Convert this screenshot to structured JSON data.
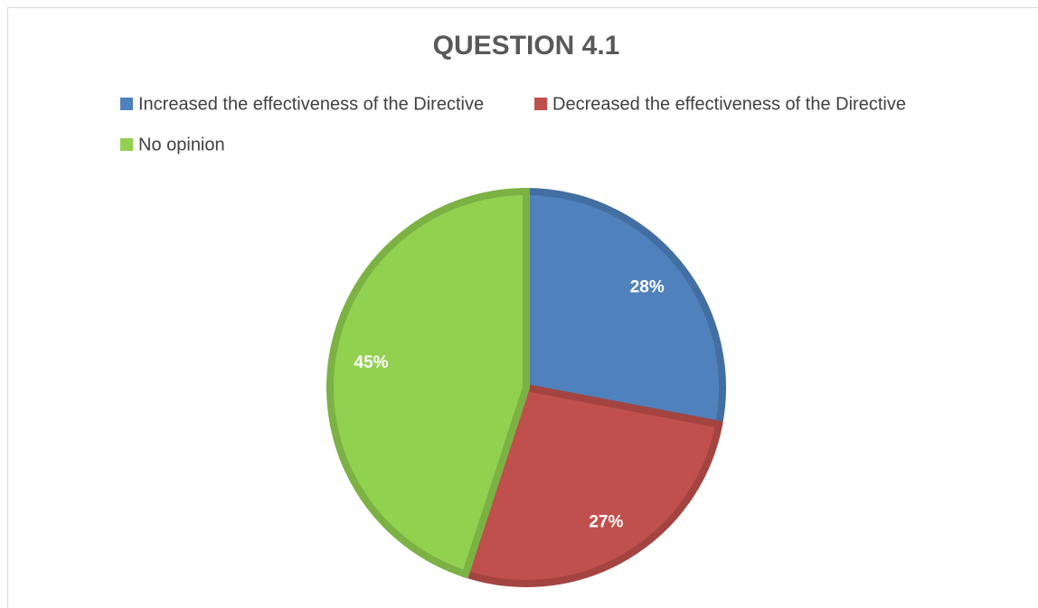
{
  "chart_data": {
    "type": "pie",
    "title": "QUESTION 4.1",
    "categories": [
      "Increased the effectiveness of the Directive",
      "Decreased the effectiveness of the Directive",
      "No opinion"
    ],
    "values": [
      28,
      27,
      45
    ],
    "value_labels": [
      "28%",
      "27%",
      "45%"
    ],
    "colors": [
      "#4f81bd",
      "#c0504d",
      "#92d050"
    ],
    "legend": "top"
  }
}
